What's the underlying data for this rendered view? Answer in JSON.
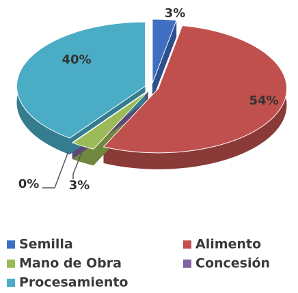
{
  "chart_data": {
    "type": "pie",
    "categories": [
      "Semilla",
      "Alimento",
      "Mano de Obra",
      "Concesión",
      "Procesamiento"
    ],
    "values": [
      3,
      54,
      3,
      0,
      40
    ],
    "value_labels": [
      "3%",
      "54%",
      "3%",
      "0%",
      "40%"
    ],
    "colors": [
      "#3e6fc2",
      "#c0504d",
      "#9bbb59",
      "#8064a2",
      "#4bacc6"
    ],
    "legend": "bottom"
  }
}
